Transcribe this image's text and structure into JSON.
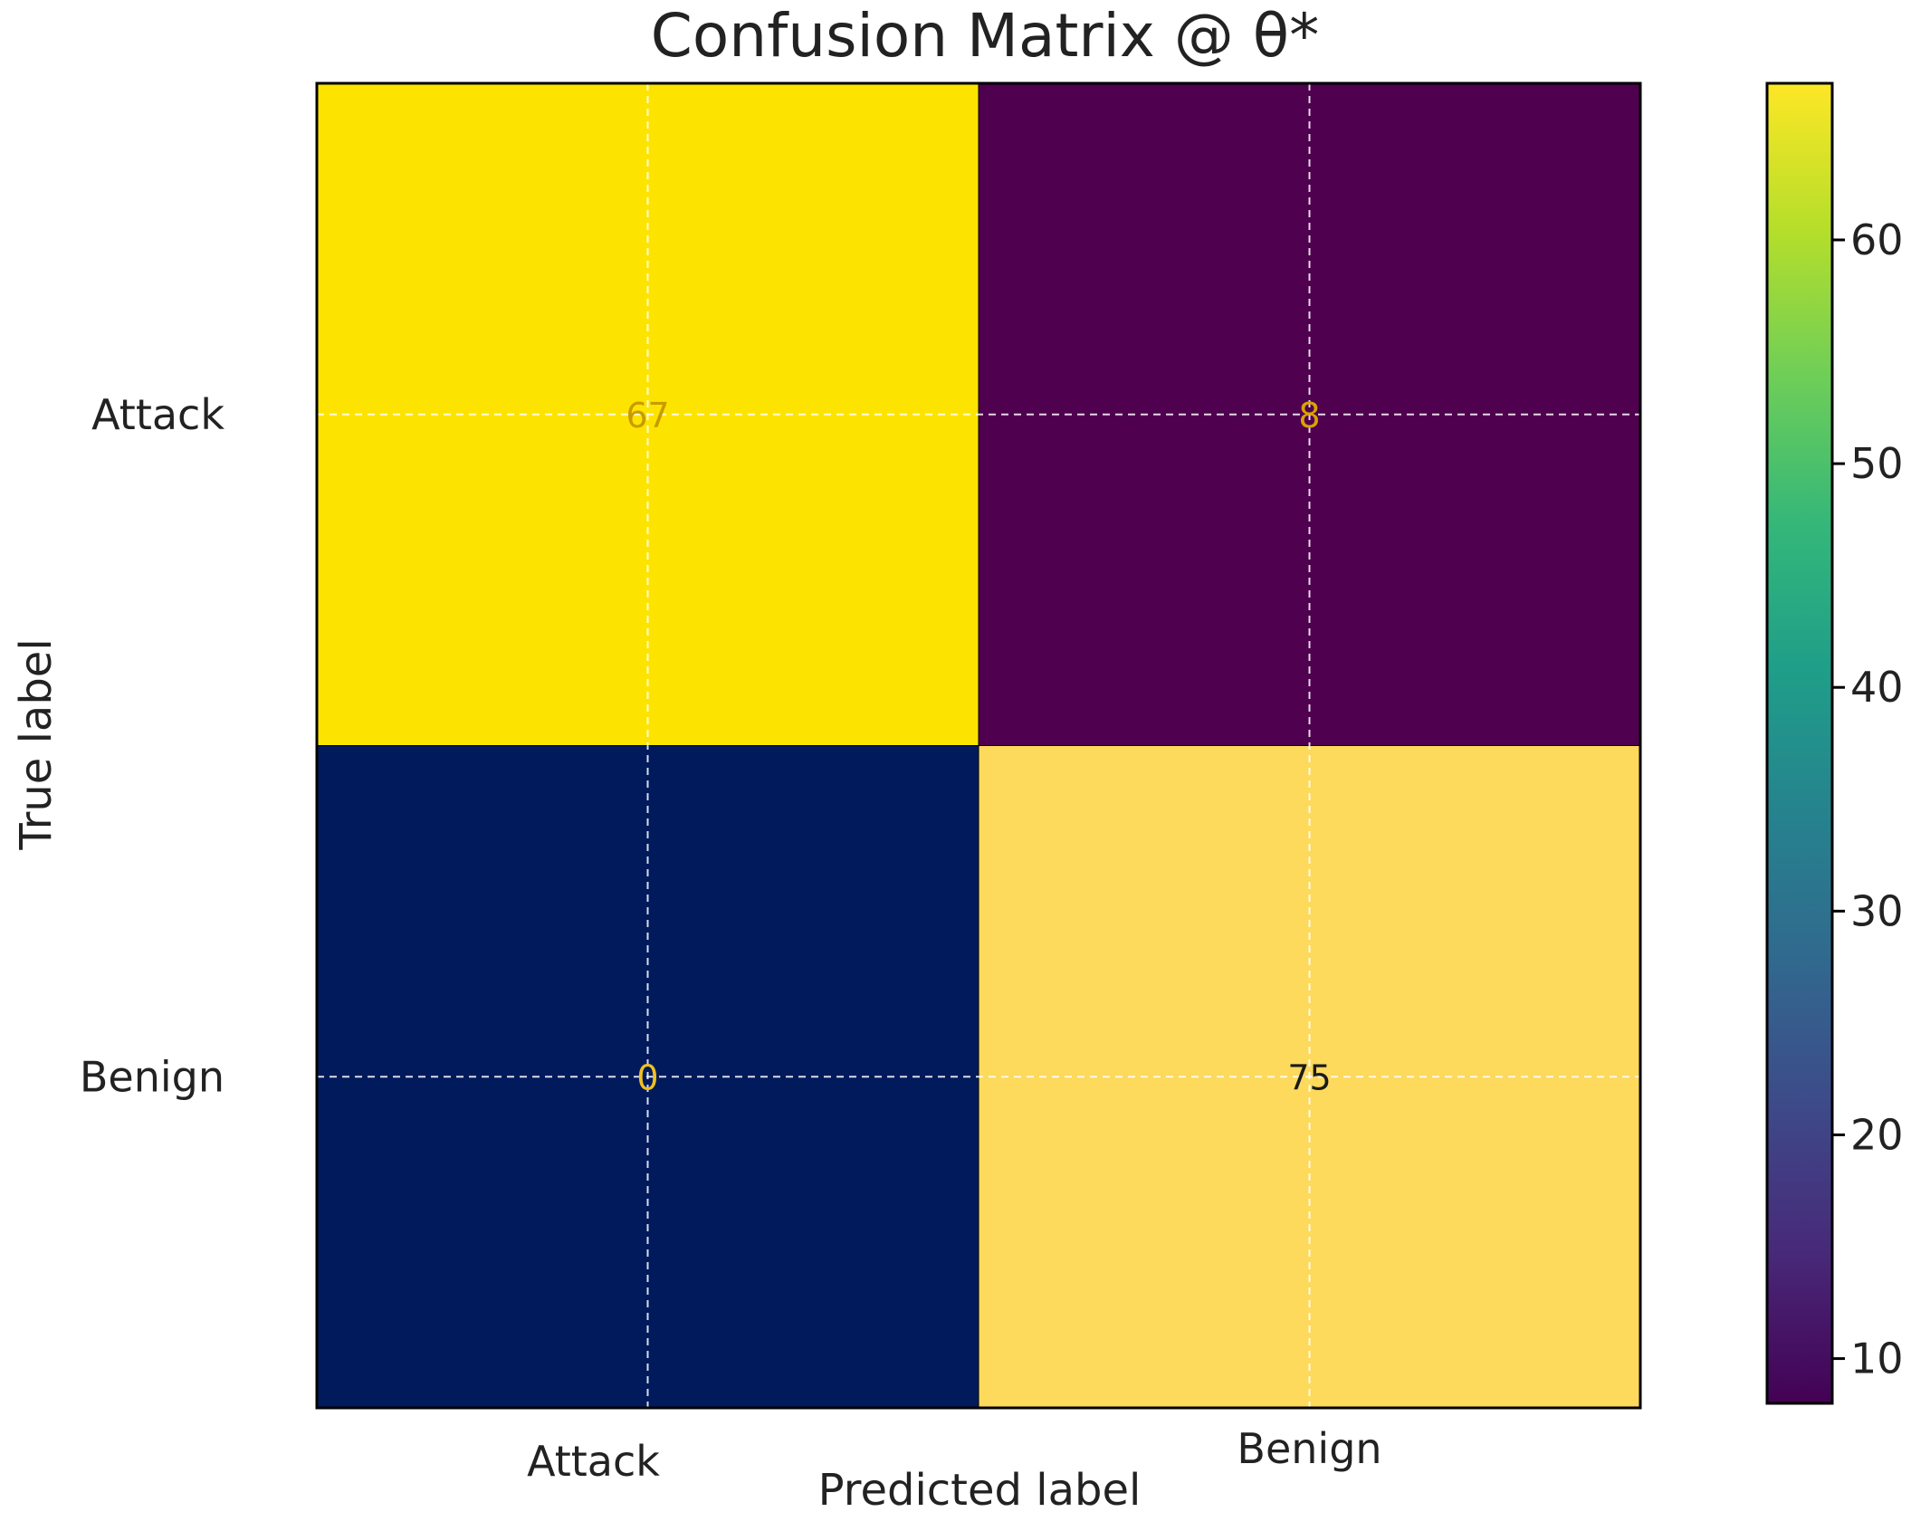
{
  "chart_data": {
    "type": "heatmap",
    "title": "Confusion Matrix @ θ*",
    "xlabel": "Predicted label",
    "ylabel": "True label",
    "x_categories": [
      "Attack",
      "Benign"
    ],
    "y_categories": [
      "Attack",
      "Benign"
    ],
    "values": [
      [
        67,
        8
      ],
      [
        0,
        75
      ]
    ],
    "cell_colors": [
      [
        "#fde400",
        "#4f004f"
      ],
      [
        "#001a5c",
        "#fdd95c"
      ]
    ],
    "annotation_colors": [
      [
        "#c99a00",
        "#d9a200"
      ],
      [
        "#f0c020",
        "#1a1a1a"
      ]
    ],
    "grid": true,
    "colorbar": {
      "range": [
        8,
        67
      ],
      "ticks": [
        10,
        20,
        30,
        40,
        50,
        60
      ],
      "colormap": "viridis",
      "gradient_stops": [
        "#440154",
        "#482878",
        "#3e4989",
        "#31688e",
        "#26828e",
        "#1f9e89",
        "#35b779",
        "#6ece58",
        "#b5de2b",
        "#fde725"
      ]
    }
  }
}
